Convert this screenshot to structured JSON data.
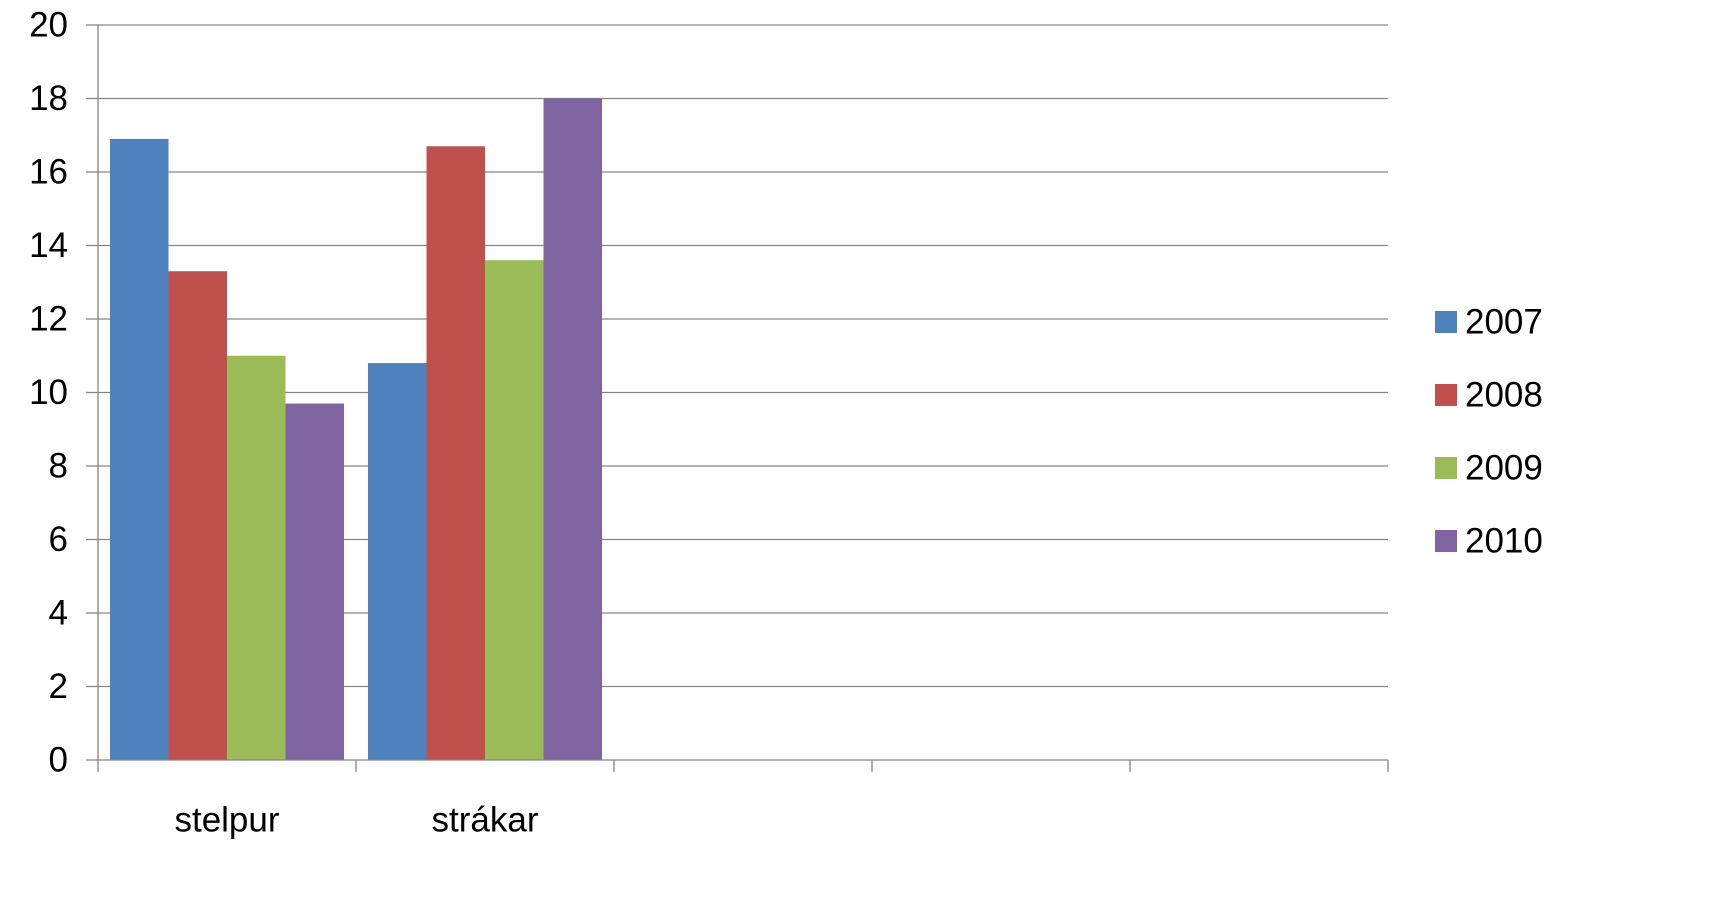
{
  "chart_data": {
    "type": "bar",
    "title": "",
    "xlabel": "",
    "ylabel": "",
    "categories": [
      "stelpur",
      "strákar",
      "",
      "",
      ""
    ],
    "series": [
      {
        "name": "2007",
        "color": "#4F81BD",
        "values": [
          16.9,
          10.8,
          null,
          null,
          null
        ]
      },
      {
        "name": "2008",
        "color": "#C0504D",
        "values": [
          13.3,
          16.7,
          null,
          null,
          null
        ]
      },
      {
        "name": "2009",
        "color": "#9BBB59",
        "values": [
          11.0,
          13.6,
          null,
          null,
          null
        ]
      },
      {
        "name": "2010",
        "color": "#8064A2",
        "values": [
          9.7,
          18.0,
          null,
          null,
          null
        ]
      }
    ],
    "ylim": [
      0,
      20
    ],
    "yticks": [
      "0",
      "2",
      "4",
      "6",
      "8",
      "10",
      "12",
      "14",
      "16",
      "18",
      "20"
    ],
    "grid": true,
    "legend_position": "right"
  }
}
